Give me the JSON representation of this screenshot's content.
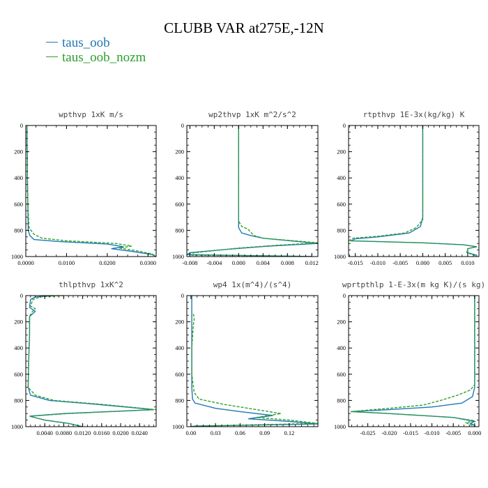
{
  "title": "CLUBB VAR at275E,-12N",
  "legend": [
    {
      "name": "taus_oob",
      "color": "#1f77b4"
    },
    {
      "name": "taus_oob_nozm",
      "color": "#2ca02c"
    }
  ],
  "chart_data": [
    {
      "type": "line",
      "title": "wpthvp   1xK m/s",
      "xlim": [
        0,
        0.032
      ],
      "ylim": [
        1000,
        0
      ],
      "xticks": [
        "0.0000",
        "0.0100",
        "0.0200",
        "0.0300"
      ],
      "xtick_values": [
        0,
        0.01,
        0.02,
        0.03
      ],
      "yticks": [
        "0",
        "200",
        "400",
        "600",
        "800",
        "1000"
      ],
      "series": [
        {
          "name": "taus_oob",
          "color": "#1f77b4",
          "dash": false,
          "points": [
            [
              0.0003,
              0
            ],
            [
              0.0003,
              150
            ],
            [
              0.0004,
              250
            ],
            [
              0.0004,
              400
            ],
            [
              0.0005,
              600
            ],
            [
              0.0006,
              800
            ],
            [
              0.001,
              840
            ],
            [
              0.002,
              870
            ],
            [
              0.008,
              885
            ],
            [
              0.02,
              905
            ],
            [
              0.024,
              925
            ],
            [
              0.021,
              940
            ],
            [
              0.026,
              960
            ],
            [
              0.031,
              985
            ],
            [
              0.032,
              1000
            ]
          ]
        },
        {
          "name": "taus_oob_nozm",
          "color": "#2ca02c",
          "dash": true,
          "points": [
            [
              0.0003,
              0
            ],
            [
              0.0003,
              150
            ],
            [
              0.0004,
              250
            ],
            [
              0.0004,
              400
            ],
            [
              0.0005,
              600
            ],
            [
              0.0008,
              780
            ],
            [
              0.002,
              830
            ],
            [
              0.004,
              860
            ],
            [
              0.01,
              880
            ],
            [
              0.022,
              900
            ],
            [
              0.026,
              920
            ],
            [
              0.023,
              935
            ],
            [
              0.027,
              955
            ],
            [
              0.031,
              980
            ],
            [
              0.032,
              1000
            ]
          ]
        }
      ]
    },
    {
      "type": "line",
      "title": "wp2thvp   1xK m^2/s^2",
      "xlim": [
        -0.0085,
        0.013
      ],
      "ylim": [
        1000,
        0
      ],
      "xticks": [
        "-0.008",
        "-0.004",
        "0.000",
        "0.004",
        "0.008",
        "0.012"
      ],
      "xtick_values": [
        -0.008,
        -0.004,
        0,
        0.004,
        0.008,
        0.012
      ],
      "yticks": [
        "0",
        "200",
        "400",
        "600",
        "800",
        "1000"
      ],
      "series": [
        {
          "name": "taus_oob",
          "color": "#1f77b4",
          "dash": false,
          "points": [
            [
              0,
              0
            ],
            [
              0,
              780
            ],
            [
              0.0005,
              820
            ],
            [
              0.002,
              840
            ],
            [
              0.004,
              860
            ],
            [
              0.013,
              900
            ],
            [
              0.005,
              920
            ],
            [
              -0.002,
              945
            ],
            [
              -0.008,
              970
            ],
            [
              -0.0085,
              985
            ],
            [
              0.006,
              995
            ],
            [
              0.012,
              1000
            ]
          ]
        },
        {
          "name": "taus_oob_nozm",
          "color": "#2ca02c",
          "dash": true,
          "points": [
            [
              0,
              0
            ],
            [
              0,
              730
            ],
            [
              0.0005,
              770
            ],
            [
              0.0015,
              790
            ],
            [
              0.0025,
              840
            ],
            [
              0.004,
              860
            ],
            [
              0.013,
              895
            ],
            [
              0.006,
              915
            ],
            [
              0,
              935
            ],
            [
              -0.004,
              955
            ],
            [
              -0.008,
              975
            ],
            [
              -0.008,
              990
            ],
            [
              0.006,
              995
            ],
            [
              0.012,
              1000
            ]
          ]
        }
      ]
    },
    {
      "type": "line",
      "title": "rtpthvp   1E-3x(kg/kg) K",
      "xlim": [
        -0.0165,
        0.0125
      ],
      "ylim": [
        1000,
        0
      ],
      "xticks": [
        "-0.015",
        "-0.010",
        "-0.005",
        "0.000",
        "0.005",
        "0.010"
      ],
      "xtick_values": [
        -0.015,
        -0.01,
        -0.005,
        0,
        0.005,
        0.01
      ],
      "yticks": [
        "0",
        "200",
        "400",
        "600",
        "800",
        "1000"
      ],
      "series": [
        {
          "name": "taus_oob",
          "color": "#1f77b4",
          "dash": false,
          "points": [
            [
              0,
              0
            ],
            [
              0,
              700
            ],
            [
              -0.0005,
              770
            ],
            [
              -0.003,
              820
            ],
            [
              -0.01,
              850
            ],
            [
              -0.015,
              865
            ],
            [
              -0.016,
              880
            ],
            [
              0,
              895
            ],
            [
              0.009,
              910
            ],
            [
              0.012,
              925
            ],
            [
              0.01,
              940
            ],
            [
              0.01,
              970
            ],
            [
              0.012,
              990
            ],
            [
              0.012,
              1000
            ]
          ]
        },
        {
          "name": "taus_oob_nozm",
          "color": "#2ca02c",
          "dash": true,
          "points": [
            [
              0,
              0
            ],
            [
              0,
              720
            ],
            [
              -0.0015,
              780
            ],
            [
              -0.004,
              820
            ],
            [
              -0.01,
              845
            ],
            [
              -0.0155,
              860
            ],
            [
              -0.0165,
              880
            ],
            [
              0,
              895
            ],
            [
              0.009,
              910
            ],
            [
              0.012,
              925
            ],
            [
              0.01,
              940
            ],
            [
              0.0098,
              970
            ],
            [
              0.0115,
              990
            ],
            [
              0.012,
              1000
            ]
          ]
        }
      ]
    },
    {
      "type": "line",
      "title": "thlpthvp   1xK^2",
      "xlim": [
        0,
        0.0275
      ],
      "ylim": [
        1000,
        0
      ],
      "xticks": [
        "0.0040",
        "0.0080",
        "0.0120",
        "0.0160",
        "0.0200",
        "0.0240"
      ],
      "xtick_values": [
        0.004,
        0.008,
        0.012,
        0.016,
        0.02,
        0.024
      ],
      "yticks": [
        "0",
        "200",
        "400",
        "600",
        "800",
        "1000"
      ],
      "series": [
        {
          "name": "taus_oob",
          "color": "#1f77b4",
          "dash": false,
          "points": [
            [
              0.006,
              0
            ],
            [
              0.002,
              10
            ],
            [
              0.001,
              30
            ],
            [
              0.0008,
              90
            ],
            [
              0.002,
              120
            ],
            [
              0.0008,
              160
            ],
            [
              0.0008,
              300
            ],
            [
              0.0006,
              500
            ],
            [
              0.0005,
              700
            ],
            [
              0.001,
              760
            ],
            [
              0.005,
              800
            ],
            [
              0.015,
              830
            ],
            [
              0.027,
              870
            ],
            [
              0.008,
              900
            ],
            [
              0.0008,
              920
            ],
            [
              0.004,
              950
            ],
            [
              0.009,
              975
            ],
            [
              0.012,
              1000
            ]
          ]
        },
        {
          "name": "taus_oob_nozm",
          "color": "#2ca02c",
          "dash": true,
          "points": [
            [
              0.008,
              0
            ],
            [
              0.003,
              10
            ],
            [
              0.0015,
              30
            ],
            [
              0.001,
              80
            ],
            [
              0.002,
              100
            ],
            [
              0.0012,
              130
            ],
            [
              0.0008,
              160
            ],
            [
              0.0008,
              300
            ],
            [
              0.0006,
              500
            ],
            [
              0.0005,
              700
            ],
            [
              0.002,
              760
            ],
            [
              0.006,
              800
            ],
            [
              0.016,
              830
            ],
            [
              0.0275,
              870
            ],
            [
              0.009,
              900
            ],
            [
              0.0008,
              920
            ],
            [
              0.004,
              950
            ],
            [
              0.009,
              975
            ],
            [
              0.012,
              1000
            ]
          ]
        }
      ]
    },
    {
      "type": "line",
      "title": "wp4   1x(m^4)/(s^4)",
      "xlim": [
        -0.005,
        0.155
      ],
      "ylim": [
        1000,
        0
      ],
      "xticks": [
        "0.00",
        "0.03",
        "0.06",
        "0.09",
        "0.12"
      ],
      "xtick_values": [
        0,
        0.03,
        0.06,
        0.09,
        0.12
      ],
      "yticks": [
        "0",
        "200",
        "400",
        "600",
        "800",
        "1000"
      ],
      "series": [
        {
          "name": "taus_oob",
          "color": "#1f77b4",
          "dash": false,
          "points": [
            [
              0.001,
              0
            ],
            [
              0.001,
              400
            ],
            [
              0.001,
              700
            ],
            [
              0.002,
              790
            ],
            [
              0.005,
              820
            ],
            [
              0.03,
              860
            ],
            [
              0.06,
              885
            ],
            [
              0.1,
              915
            ],
            [
              0.07,
              940
            ],
            [
              0.12,
              960
            ],
            [
              0.155,
              980
            ],
            [
              0.005,
              995
            ],
            [
              0,
              1000
            ]
          ]
        },
        {
          "name": "taus_oob_nozm",
          "color": "#2ca02c",
          "dash": true,
          "points": [
            [
              0.003,
              140
            ],
            [
              0.004,
              180
            ],
            [
              0.003,
              220
            ],
            [
              0.001,
              400
            ],
            [
              0.001,
              600
            ],
            [
              0.004,
              740
            ],
            [
              0.01,
              790
            ],
            [
              0.04,
              830
            ],
            [
              0.07,
              860
            ],
            [
              0.11,
              900
            ],
            [
              0.08,
              930
            ],
            [
              0.12,
              950
            ],
            [
              0.155,
              975
            ],
            [
              0.01,
              995
            ],
            [
              0,
              1000
            ]
          ]
        }
      ]
    },
    {
      "type": "line",
      "title": "wprtpthlp   1-E-3x(m kg K)/(s kg)",
      "xlim": [
        -0.0295,
        0.001
      ],
      "ylim": [
        1000,
        0
      ],
      "xticks": [
        "-0.025",
        "-0.020",
        "-0.015",
        "-0.010",
        "-0.005",
        "0.000"
      ],
      "xtick_values": [
        -0.025,
        -0.02,
        -0.015,
        -0.01,
        -0.005,
        0
      ],
      "yticks": [
        "0",
        "200",
        "400",
        "600",
        "800",
        "1000"
      ],
      "series": [
        {
          "name": "taus_oob",
          "color": "#1f77b4",
          "dash": false,
          "points": [
            [
              0,
              0
            ],
            [
              0,
              700
            ],
            [
              -0.0005,
              770
            ],
            [
              -0.003,
              820
            ],
            [
              -0.01,
              850
            ],
            [
              -0.02,
              870
            ],
            [
              -0.029,
              885
            ],
            [
              -0.02,
              900
            ],
            [
              -0.005,
              930
            ],
            [
              0,
              960
            ],
            [
              -0.001,
              975
            ],
            [
              0,
              990
            ],
            [
              0,
              1000
            ]
          ]
        },
        {
          "name": "taus_oob_nozm",
          "color": "#2ca02c",
          "dash": true,
          "points": [
            [
              0,
              0
            ],
            [
              0,
              680
            ],
            [
              -0.001,
              720
            ],
            [
              -0.004,
              760
            ],
            [
              -0.008,
              800
            ],
            [
              -0.012,
              835
            ],
            [
              -0.02,
              860
            ],
            [
              -0.029,
              885
            ],
            [
              -0.02,
              900
            ],
            [
              -0.005,
              930
            ],
            [
              0,
              955
            ],
            [
              -0.002,
              970
            ],
            [
              -0.001,
              985
            ],
            [
              0,
              1000
            ]
          ]
        }
      ]
    }
  ]
}
